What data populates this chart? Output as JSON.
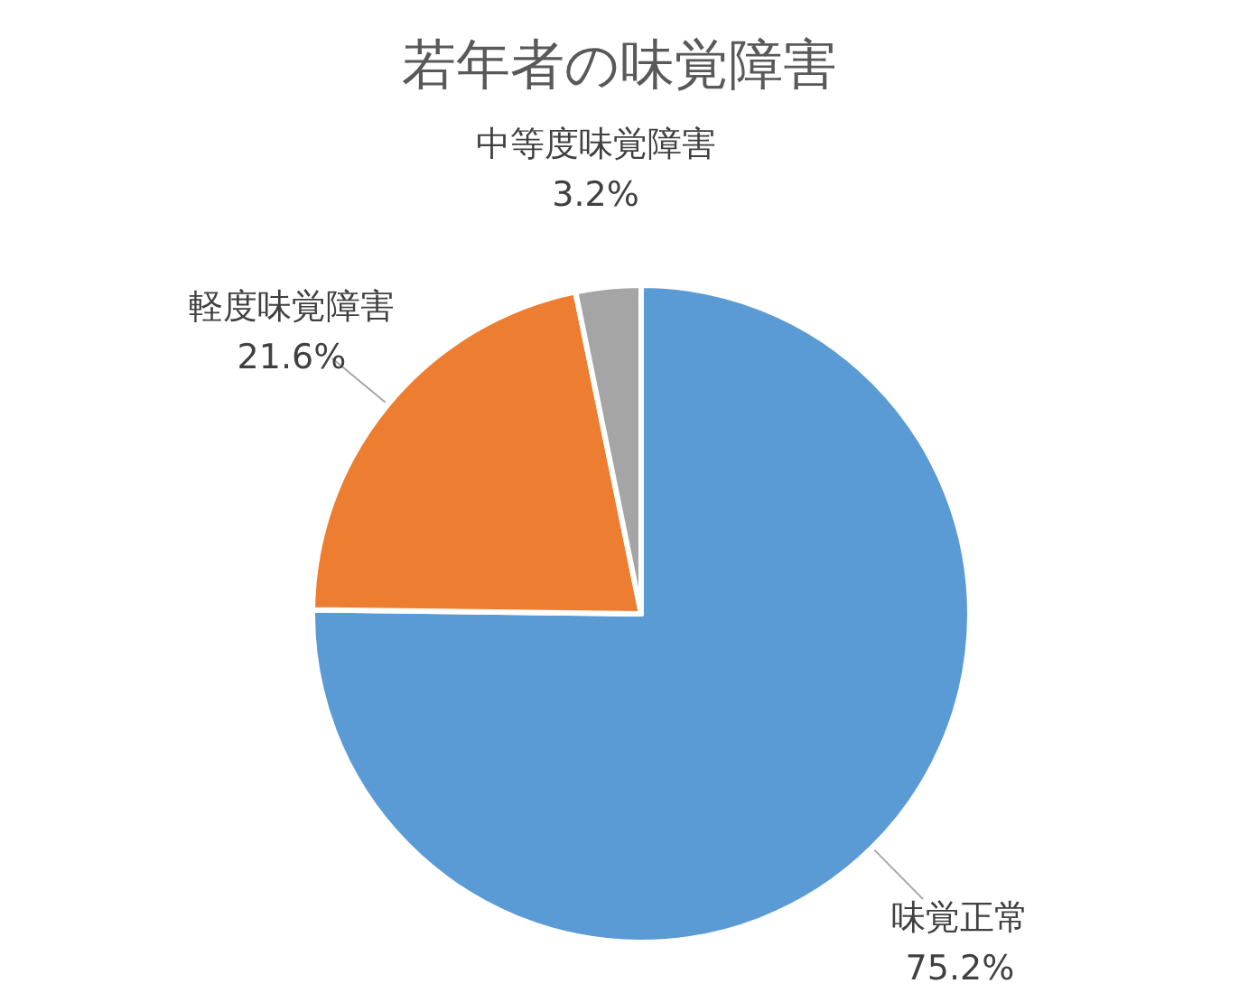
{
  "chart_data": {
    "type": "pie",
    "title": "若年者の味覚障害",
    "categories": [
      "味覚正常",
      "軽度味覚障害",
      "中等度味覚障害"
    ],
    "values": [
      75.2,
      21.6,
      3.2
    ],
    "colors": [
      "#5b9bd5",
      "#ed7d31",
      "#a5a5a5"
    ],
    "value_labels": [
      "75.2%",
      "21.6%",
      "3.2%"
    ],
    "legend": false
  }
}
